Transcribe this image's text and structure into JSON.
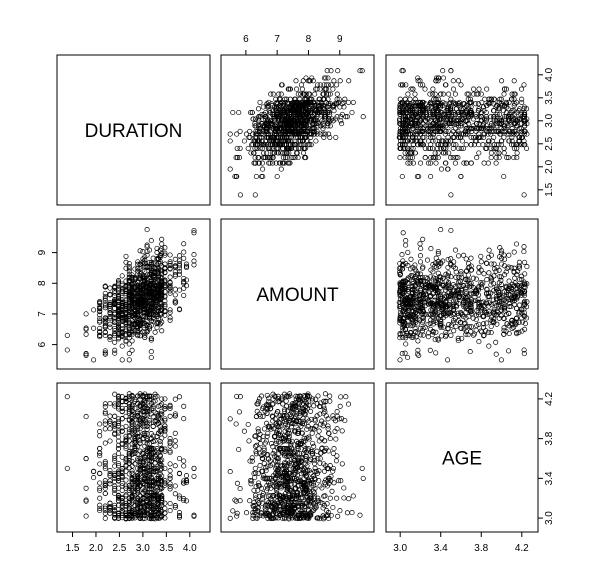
{
  "chart_data": {
    "type": "scatter",
    "layout": "pairs-matrix",
    "variables": [
      "DURATION",
      "AMOUNT",
      "AGE"
    ],
    "axes": {
      "DURATION": {
        "range": [
          1.3,
          4.3
        ],
        "ticks": [
          1.5,
          2.0,
          2.5,
          3.0,
          3.5,
          4.0
        ],
        "tick_labels": [
          "1.5",
          "2.0",
          "2.5",
          "3.0",
          "3.5",
          "4.0"
        ]
      },
      "AMOUNT": {
        "range": [
          5.4,
          9.9
        ],
        "ticks": [
          6,
          7,
          8,
          9
        ],
        "tick_labels": [
          "6",
          "7",
          "8",
          "9"
        ]
      },
      "AGE": {
        "range": [
          2.92,
          4.3
        ],
        "ticks": [
          3.0,
          3.4,
          3.8,
          4.2
        ],
        "tick_labels": [
          "3.0",
          "3.4",
          "3.8",
          "4.2"
        ]
      }
    },
    "axis_placement": {
      "bottom": [
        "DURATION",
        null,
        "AGE"
      ],
      "top": [
        null,
        "AMOUNT",
        null
      ],
      "left": [
        null,
        "AMOUNT",
        null
      ],
      "right": [
        "DURATION",
        null,
        "AGE"
      ]
    },
    "grid": false,
    "marker": "open-circle",
    "duration_levels": [
      1.39,
      1.79,
      1.95,
      2.08,
      2.2,
      2.3,
      2.4,
      2.48,
      2.56,
      2.64,
      2.71,
      2.77,
      2.83,
      2.89,
      2.94,
      3.0,
      3.04,
      3.09,
      3.14,
      3.18,
      3.22,
      3.26,
      3.3,
      3.33,
      3.37,
      3.4,
      3.47,
      3.58,
      3.69,
      3.78,
      3.87,
      3.93,
      4.09
    ],
    "points_sample": {
      "DURATION": [
        1.79,
        1.79,
        2.48,
        2.48,
        2.48,
        2.89,
        3.18,
        3.18,
        3.58,
        3.58,
        3.78,
        4.09,
        2.2,
        2.3,
        2.64,
        3.0,
        3.04,
        3.4,
        1.39,
        2.08
      ],
      "AMOUNT": [
        6.5,
        7.0,
        7.3,
        7.5,
        8.0,
        7.6,
        7.9,
        8.3,
        8.2,
        8.7,
        8.9,
        8.6,
        7.2,
        6.9,
        7.6,
        7.7,
        8.1,
        8.3,
        6.3,
        7.1
      ],
      "AGE": [
        3.3,
        3.6,
        3.2,
        3.4,
        3.7,
        3.5,
        3.3,
        3.6,
        3.4,
        3.8,
        3.2,
        3.5,
        3.1,
        3.9,
        3.3,
        3.6,
        3.4,
        3.2,
        3.5,
        3.7
      ]
    },
    "n_points": 1000
  }
}
